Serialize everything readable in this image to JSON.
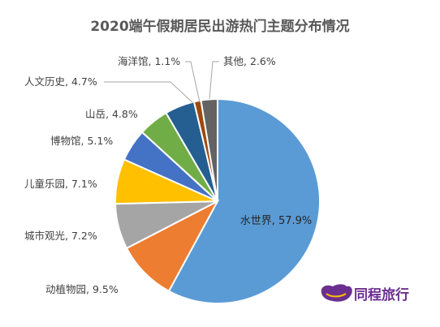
{
  "chart_data": {
    "type": "pie",
    "title": "2020端午假期居民出游热门主题分布情况",
    "start": "top, clockwise",
    "slices": [
      {
        "label": "水世界",
        "value": 57.9,
        "display": "水世界, 57.9%",
        "color": "#5b9bd5"
      },
      {
        "label": "动植物园",
        "value": 9.5,
        "display": "动植物园, 9.5%",
        "color": "#ed7d31"
      },
      {
        "label": "城市观光",
        "value": 7.2,
        "display": "城市观光, 7.2%",
        "color": "#a5a5a5"
      },
      {
        "label": "儿童乐园",
        "value": 7.1,
        "display": "儿童乐园, 7.1%",
        "color": "#ffc000"
      },
      {
        "label": "博物馆",
        "value": 5.1,
        "display": "博物馆, 5.1%",
        "color": "#4472c4"
      },
      {
        "label": "山岳",
        "value": 4.8,
        "display": "山岳, 4.8%",
        "color": "#70ad47"
      },
      {
        "label": "人文历史",
        "value": 4.7,
        "display": "人文历史, 4.7%",
        "color": "#255e91"
      },
      {
        "label": "海洋馆",
        "value": 1.1,
        "display": "海洋馆, 1.1%",
        "color": "#9e480e"
      },
      {
        "label": "其他",
        "value": 2.6,
        "display": "其他, 2.6%",
        "color": "#636363"
      }
    ]
  },
  "brand": {
    "text": "同程旅行",
    "logo_icon": "tongcheng-logo-icon",
    "color": "#6b2f8f"
  }
}
